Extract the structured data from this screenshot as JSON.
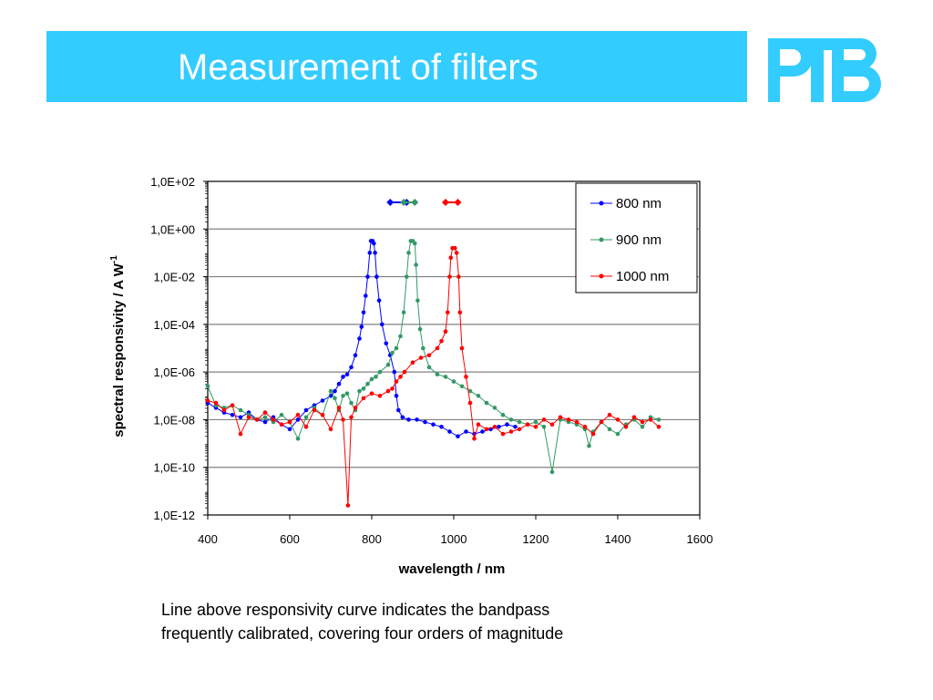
{
  "slide": {
    "title": "Measurement of filters",
    "logo_text": "PTB",
    "caption_lines": [
      "Line above responsivity curve indicates the bandpass",
      "frequently calibrated, covering four orders of magnitude"
    ]
  },
  "colors": {
    "title_bar": "#33ccff",
    "logo": "#33ccff",
    "series_800": "#0000ff",
    "series_900": "#339966",
    "series_1000": "#ff0000"
  },
  "chart_data": {
    "type": "line",
    "title": "",
    "xlabel": "wavelength / nm",
    "ylabel": "spectral responsivity / A W",
    "ylabel_superscript": "-1",
    "y_scale": "log",
    "xlim": [
      400,
      1600
    ],
    "ylim_exponent": [
      -12,
      2
    ],
    "x_ticks": [
      "400",
      "600",
      "800",
      "1000",
      "1200",
      "1400",
      "1600"
    ],
    "y_ticks": [
      "1,0E-12",
      "1,0E-10",
      "1,0E-08",
      "1,0E-06",
      "1,0E-04",
      "1,0E-02",
      "1,0E+00",
      "1,0E+02"
    ],
    "grid": "horizontal",
    "legend_position": "top-right",
    "series": [
      {
        "name": "800 nm",
        "color": "#0000ff",
        "bandpass_line": [
          845,
          885
        ],
        "log10_points": [
          [
            400,
            -7.3
          ],
          [
            420,
            -7.5
          ],
          [
            440,
            -7.7
          ],
          [
            460,
            -7.8
          ],
          [
            480,
            -7.9
          ],
          [
            500,
            -7.7
          ],
          [
            520,
            -8.0
          ],
          [
            540,
            -8.1
          ],
          [
            560,
            -7.9
          ],
          [
            580,
            -8.2
          ],
          [
            600,
            -8.4
          ],
          [
            620,
            -8.0
          ],
          [
            640,
            -7.6
          ],
          [
            660,
            -7.4
          ],
          [
            680,
            -7.2
          ],
          [
            700,
            -7.0
          ],
          [
            710,
            -6.8
          ],
          [
            720,
            -6.5
          ],
          [
            730,
            -6.2
          ],
          [
            740,
            -6.1
          ],
          [
            750,
            -5.8
          ],
          [
            760,
            -5.3
          ],
          [
            770,
            -4.6
          ],
          [
            775,
            -4.1
          ],
          [
            780,
            -3.5
          ],
          [
            785,
            -2.8
          ],
          [
            790,
            -2.0
          ],
          [
            795,
            -1.0
          ],
          [
            798,
            -0.5
          ],
          [
            802,
            -0.5
          ],
          [
            805,
            -0.6
          ],
          [
            808,
            -1.0
          ],
          [
            812,
            -2.0
          ],
          [
            818,
            -3.0
          ],
          [
            825,
            -4.0
          ],
          [
            835,
            -4.8
          ],
          [
            845,
            -5.3
          ],
          [
            855,
            -6.0
          ],
          [
            860,
            -7.0
          ],
          [
            865,
            -7.6
          ],
          [
            875,
            -7.9
          ],
          [
            890,
            -8.0
          ],
          [
            910,
            -8.0
          ],
          [
            930,
            -8.1
          ],
          [
            950,
            -8.2
          ],
          [
            970,
            -8.3
          ],
          [
            990,
            -8.5
          ],
          [
            1010,
            -8.7
          ],
          [
            1030,
            -8.5
          ],
          [
            1050,
            -8.6
          ],
          [
            1070,
            -8.5
          ],
          [
            1090,
            -8.4
          ],
          [
            1110,
            -8.3
          ],
          [
            1130,
            -8.2
          ],
          [
            1150,
            -8.3
          ]
        ]
      },
      {
        "name": "900 nm",
        "color": "#339966",
        "bandpass_line": [
          878,
          905
        ],
        "log10_points": [
          [
            400,
            -6.6
          ],
          [
            420,
            -7.4
          ],
          [
            440,
            -7.5
          ],
          [
            460,
            -7.4
          ],
          [
            480,
            -7.6
          ],
          [
            500,
            -7.8
          ],
          [
            520,
            -8.0
          ],
          [
            540,
            -7.9
          ],
          [
            560,
            -8.1
          ],
          [
            580,
            -7.8
          ],
          [
            600,
            -8.1
          ],
          [
            620,
            -8.8
          ],
          [
            640,
            -7.9
          ],
          [
            660,
            -7.5
          ],
          [
            680,
            -7.8
          ],
          [
            700,
            -6.8
          ],
          [
            710,
            -7.1
          ],
          [
            720,
            -7.6
          ],
          [
            730,
            -7.0
          ],
          [
            740,
            -6.9
          ],
          [
            750,
            -7.3
          ],
          [
            760,
            -7.6
          ],
          [
            770,
            -6.8
          ],
          [
            780,
            -6.7
          ],
          [
            790,
            -6.5
          ],
          [
            800,
            -6.3
          ],
          [
            810,
            -6.2
          ],
          [
            820,
            -6.0
          ],
          [
            840,
            -5.7
          ],
          [
            850,
            -5.2
          ],
          [
            860,
            -5.0
          ],
          [
            870,
            -4.5
          ],
          [
            878,
            -3.5
          ],
          [
            885,
            -2.0
          ],
          [
            890,
            -1.0
          ],
          [
            895,
            -0.5
          ],
          [
            900,
            -0.5
          ],
          [
            905,
            -0.6
          ],
          [
            908,
            -1.5
          ],
          [
            912,
            -3.0
          ],
          [
            918,
            -4.2
          ],
          [
            925,
            -5.0
          ],
          [
            940,
            -5.8
          ],
          [
            960,
            -6.1
          ],
          [
            980,
            -6.2
          ],
          [
            1000,
            -6.4
          ],
          [
            1020,
            -6.6
          ],
          [
            1040,
            -6.8
          ],
          [
            1060,
            -7.0
          ],
          [
            1080,
            -7.3
          ],
          [
            1100,
            -7.5
          ],
          [
            1120,
            -7.8
          ],
          [
            1140,
            -8.0
          ],
          [
            1160,
            -8.1
          ],
          [
            1180,
            -8.2
          ],
          [
            1200,
            -8.1
          ],
          [
            1220,
            -8.3
          ],
          [
            1240,
            -10.2
          ],
          [
            1260,
            -8.0
          ],
          [
            1280,
            -8.1
          ],
          [
            1300,
            -8.2
          ],
          [
            1320,
            -8.4
          ],
          [
            1330,
            -9.1
          ],
          [
            1340,
            -8.5
          ],
          [
            1360,
            -8.1
          ],
          [
            1380,
            -8.4
          ],
          [
            1400,
            -8.6
          ],
          [
            1420,
            -8.2
          ],
          [
            1440,
            -8.0
          ],
          [
            1460,
            -8.3
          ],
          [
            1480,
            -7.9
          ],
          [
            1500,
            -8.0
          ]
        ]
      },
      {
        "name": "1000 nm",
        "color": "#ff0000",
        "bandpass_line": [
          980,
          1010
        ],
        "log10_points": [
          [
            400,
            -7.2
          ],
          [
            420,
            -7.3
          ],
          [
            440,
            -7.6
          ],
          [
            460,
            -7.4
          ],
          [
            480,
            -8.6
          ],
          [
            500,
            -7.9
          ],
          [
            520,
            -8.0
          ],
          [
            540,
            -7.7
          ],
          [
            560,
            -8.0
          ],
          [
            580,
            -8.2
          ],
          [
            600,
            -8.1
          ],
          [
            620,
            -7.8
          ],
          [
            640,
            -8.3
          ],
          [
            660,
            -7.6
          ],
          [
            680,
            -7.8
          ],
          [
            700,
            -8.4
          ],
          [
            720,
            -7.5
          ],
          [
            730,
            -8.0
          ],
          [
            742,
            -11.6
          ],
          [
            750,
            -7.9
          ],
          [
            760,
            -7.5
          ],
          [
            780,
            -7.1
          ],
          [
            800,
            -6.9
          ],
          [
            820,
            -7.0
          ],
          [
            840,
            -6.8
          ],
          [
            850,
            -6.7
          ],
          [
            860,
            -6.4
          ],
          [
            870,
            -6.2
          ],
          [
            880,
            -6.0
          ],
          [
            900,
            -5.6
          ],
          [
            920,
            -5.4
          ],
          [
            940,
            -5.3
          ],
          [
            960,
            -5.0
          ],
          [
            970,
            -4.7
          ],
          [
            980,
            -4.3
          ],
          [
            985,
            -3.5
          ],
          [
            990,
            -2.0
          ],
          [
            993,
            -1.2
          ],
          [
            997,
            -0.8
          ],
          [
            1003,
            -0.8
          ],
          [
            1007,
            -1.0
          ],
          [
            1012,
            -2.0
          ],
          [
            1015,
            -3.5
          ],
          [
            1020,
            -5.0
          ],
          [
            1030,
            -6.2
          ],
          [
            1040,
            -7.3
          ],
          [
            1050,
            -8.8
          ],
          [
            1060,
            -8.2
          ],
          [
            1080,
            -8.4
          ],
          [
            1100,
            -8.3
          ],
          [
            1120,
            -8.6
          ],
          [
            1140,
            -8.5
          ],
          [
            1160,
            -8.4
          ],
          [
            1180,
            -8.2
          ],
          [
            1200,
            -8.3
          ],
          [
            1220,
            -8.0
          ],
          [
            1240,
            -8.2
          ],
          [
            1260,
            -7.9
          ],
          [
            1280,
            -8.0
          ],
          [
            1300,
            -8.1
          ],
          [
            1320,
            -8.3
          ],
          [
            1340,
            -8.6
          ],
          [
            1360,
            -8.1
          ],
          [
            1380,
            -7.8
          ],
          [
            1400,
            -8.0
          ],
          [
            1420,
            -8.3
          ],
          [
            1440,
            -7.9
          ],
          [
            1460,
            -8.1
          ],
          [
            1480,
            -8.0
          ],
          [
            1500,
            -8.3
          ]
        ]
      }
    ]
  }
}
